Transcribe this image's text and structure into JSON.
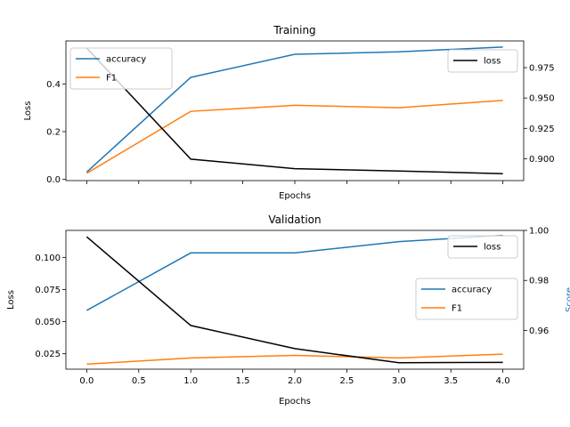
{
  "chart_data": [
    {
      "type": "line",
      "title": "Training",
      "xlabel": "Epochs",
      "ylabel": "Loss",
      "y2label": "",
      "x": [
        0,
        1,
        2,
        3,
        4
      ],
      "xlim": [
        -0.2,
        4.2
      ],
      "ylim": [
        -0.005,
        0.58
      ],
      "y2lim": [
        0.882,
        0.997
      ],
      "yticks": [
        0.0,
        0.2,
        0.4
      ],
      "yticklabels": [
        "0.0",
        "0.2",
        "0.4"
      ],
      "y2ticks": [
        0.9,
        0.925,
        0.95,
        0.975
      ],
      "y2ticklabels": [
        "0.900",
        "0.925",
        "0.950",
        "0.975"
      ],
      "xticks": [
        0,
        0.5,
        1,
        1.5,
        2,
        2.5,
        3,
        3.5,
        4
      ],
      "xticklabels": [],
      "series": [
        {
          "name": "accuracy",
          "axis": "right",
          "color": "#1f77b4",
          "values": [
            0.889,
            0.967,
            0.986,
            0.988,
            0.992
          ]
        },
        {
          "name": "F1",
          "axis": "right",
          "color": "#ff7f0e",
          "values": [
            0.888,
            0.939,
            0.944,
            0.942,
            0.948
          ]
        },
        {
          "name": "loss",
          "axis": "left",
          "color": "#000000",
          "values": [
            0.55,
            0.085,
            0.045,
            0.035,
            0.024
          ]
        }
      ],
      "legend_left": {
        "placement": "upper-left",
        "items": [
          "accuracy",
          "F1"
        ]
      },
      "legend_right": {
        "placement": "upper-right",
        "items": [
          "loss"
        ]
      }
    },
    {
      "type": "line",
      "title": "Validation",
      "xlabel": "Epochs",
      "ylabel": "Loss",
      "y2label": "Score",
      "x": [
        0,
        1,
        2,
        3,
        4
      ],
      "xlim": [
        -0.2,
        4.2
      ],
      "ylim": [
        0.013,
        0.121
      ],
      "y2lim": [
        0.9445,
        1.0
      ],
      "yticks": [
        0.025,
        0.05,
        0.075,
        0.1
      ],
      "yticklabels": [
        "0.025",
        "0.050",
        "0.075",
        "0.100"
      ],
      "y2ticks": [
        0.96,
        0.98,
        1.0
      ],
      "y2ticklabels": [
        "0.96",
        "0.98",
        "1.00"
      ],
      "xticks": [
        0,
        0.5,
        1,
        1.5,
        2,
        2.5,
        3,
        3.5,
        4
      ],
      "xticklabels": [
        "0.0",
        "0.5",
        "1.0",
        "1.5",
        "2.0",
        "2.5",
        "3.0",
        "3.5",
        "4.0"
      ],
      "series": [
        {
          "name": "accuracy",
          "axis": "right",
          "color": "#1f77b4",
          "values": [
            0.968,
            0.991,
            0.991,
            0.9955,
            0.998
          ]
        },
        {
          "name": "F1",
          "axis": "right",
          "color": "#ff7f0e",
          "values": [
            0.9465,
            0.949,
            0.95,
            0.949,
            0.9505
          ]
        },
        {
          "name": "loss",
          "axis": "left",
          "color": "#000000",
          "values": [
            0.116,
            0.047,
            0.029,
            0.018,
            0.0183
          ]
        }
      ],
      "legend_left": {
        "placement": "center-right",
        "items": [
          "accuracy",
          "F1"
        ]
      },
      "legend_right": {
        "placement": "upper-right",
        "items": [
          "loss"
        ]
      },
      "y2label_color": "#1f77b4"
    }
  ]
}
